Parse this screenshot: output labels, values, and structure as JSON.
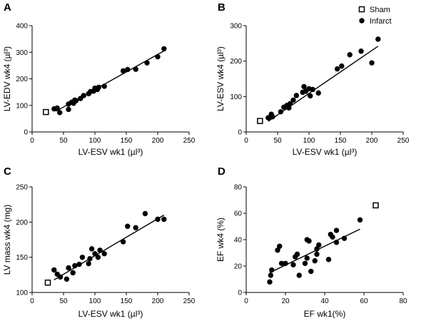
{
  "legend": {
    "sham_label": "Sham",
    "infarct_label": "Infarct"
  },
  "chart_data": [
    {
      "type": "scatter",
      "panel_label": "A",
      "xlabel": "LV-ESV wk1 (µl³)",
      "ylabel": "LV-EDV wk4 (µl³)",
      "xlim": [
        0,
        250
      ],
      "ylim": [
        0,
        400
      ],
      "x_ticks": [
        0,
        50,
        100,
        150,
        200,
        250
      ],
      "y_ticks": [
        0,
        100,
        200,
        300,
        400
      ],
      "series": [
        {
          "name": "Sham",
          "marker": "open-square",
          "points": [
            [
              22,
              75
            ]
          ]
        },
        {
          "name": "Infarct",
          "marker": "filled-circle",
          "points": [
            [
              35,
              87
            ],
            [
              40,
              90
            ],
            [
              44,
              73
            ],
            [
              58,
              85
            ],
            [
              58,
              105
            ],
            [
              63,
              112
            ],
            [
              66,
              108
            ],
            [
              68,
              120
            ],
            [
              70,
              118
            ],
            [
              77,
              126
            ],
            [
              82,
              137
            ],
            [
              90,
              144
            ],
            [
              93,
              152
            ],
            [
              98,
              154
            ],
            [
              100,
              165
            ],
            [
              104,
              160
            ],
            [
              106,
              168
            ],
            [
              115,
              172
            ],
            [
              145,
              230
            ],
            [
              152,
              235
            ],
            [
              165,
              236
            ],
            [
              183,
              260
            ],
            [
              200,
              283
            ],
            [
              210,
              313
            ]
          ]
        }
      ],
      "trendline": [
        [
          38,
          78
        ],
        [
          210,
          305
        ]
      ]
    },
    {
      "type": "scatter",
      "panel_label": "B",
      "xlabel": "LV-ESV wk1 (µl³)",
      "ylabel": "LV-ESV wk4 (µl³)",
      "xlim": [
        0,
        250
      ],
      "ylim": [
        0,
        300
      ],
      "x_ticks": [
        0,
        50,
        100,
        150,
        200,
        250
      ],
      "y_ticks": [
        0,
        100,
        200,
        300
      ],
      "series": [
        {
          "name": "Sham",
          "marker": "open-square",
          "points": [
            [
              22,
              31
            ]
          ]
        },
        {
          "name": "Infarct",
          "marker": "filled-circle",
          "points": [
            [
              35,
              40
            ],
            [
              40,
              50
            ],
            [
              42,
              43
            ],
            [
              55,
              57
            ],
            [
              60,
              70
            ],
            [
              65,
              75
            ],
            [
              68,
              68
            ],
            [
              70,
              80
            ],
            [
              75,
              90
            ],
            [
              80,
              103
            ],
            [
              90,
              112
            ],
            [
              92,
              128
            ],
            [
              95,
              115
            ],
            [
              100,
              122
            ],
            [
              102,
              102
            ],
            [
              106,
              120
            ],
            [
              115,
              110
            ],
            [
              145,
              178
            ],
            [
              152,
              186
            ],
            [
              165,
              218
            ],
            [
              183,
              228
            ],
            [
              200,
              195
            ],
            [
              210,
              262
            ]
          ]
        }
      ],
      "trendline": [
        [
          35,
          30
        ],
        [
          210,
          242
        ]
      ]
    },
    {
      "type": "scatter",
      "panel_label": "C",
      "xlabel": "LV-ESV wk1 (µl³)",
      "ylabel": "LV mass wk4 (mg)",
      "xlim": [
        0,
        250
      ],
      "ylim": [
        100,
        250
      ],
      "x_ticks": [
        0,
        50,
        100,
        150,
        200,
        250
      ],
      "y_ticks": [
        100,
        150,
        200,
        250
      ],
      "series": [
        {
          "name": "Sham",
          "marker": "open-square",
          "points": [
            [
              25,
              114
            ]
          ]
        },
        {
          "name": "Infarct",
          "marker": "filled-circle",
          "points": [
            [
              35,
              132
            ],
            [
              40,
              126
            ],
            [
              45,
              122
            ],
            [
              55,
              119
            ],
            [
              58,
              135
            ],
            [
              65,
              128
            ],
            [
              68,
              138
            ],
            [
              75,
              140
            ],
            [
              80,
              150
            ],
            [
              90,
              141
            ],
            [
              92,
              148
            ],
            [
              95,
              162
            ],
            [
              100,
              155
            ],
            [
              105,
              150
            ],
            [
              108,
              160
            ],
            [
              115,
              155
            ],
            [
              145,
              172
            ],
            [
              152,
              194
            ],
            [
              165,
              192
            ],
            [
              180,
              212
            ],
            [
              200,
              204
            ],
            [
              210,
              204
            ]
          ]
        }
      ],
      "trendline": [
        [
          35,
          118
        ],
        [
          210,
          210
        ]
      ]
    },
    {
      "type": "scatter",
      "panel_label": "D",
      "xlabel": "EF wk1(%)",
      "ylabel": "EF wk4 (%)",
      "xlim": [
        0,
        80
      ],
      "ylim": [
        0,
        80
      ],
      "x_ticks": [
        0,
        20,
        40,
        60,
        80
      ],
      "y_ticks": [
        0,
        20,
        40,
        60,
        80
      ],
      "series": [
        {
          "name": "Sham",
          "marker": "open-square",
          "points": [
            [
              66,
              66
            ]
          ]
        },
        {
          "name": "Infarct",
          "marker": "filled-circle",
          "points": [
            [
              12,
              8
            ],
            [
              12.5,
              13
            ],
            [
              13,
              17
            ],
            [
              16,
              32
            ],
            [
              17,
              35
            ],
            [
              18,
              22
            ],
            [
              20,
              22
            ],
            [
              24,
              21
            ],
            [
              25,
              27
            ],
            [
              26,
              29
            ],
            [
              27,
              13
            ],
            [
              30,
              22
            ],
            [
              31,
              26
            ],
            [
              31,
              40
            ],
            [
              32,
              39
            ],
            [
              33,
              16
            ],
            [
              35,
              24
            ],
            [
              36,
              29
            ],
            [
              36,
              33
            ],
            [
              37,
              36
            ],
            [
              42,
              25
            ],
            [
              43,
              44
            ],
            [
              44,
              42
            ],
            [
              46,
              38
            ],
            [
              46,
              47
            ],
            [
              50,
              41
            ],
            [
              58,
              55
            ]
          ]
        }
      ],
      "trendline": [
        [
          12,
          15
        ],
        [
          58,
          48
        ]
      ]
    }
  ]
}
